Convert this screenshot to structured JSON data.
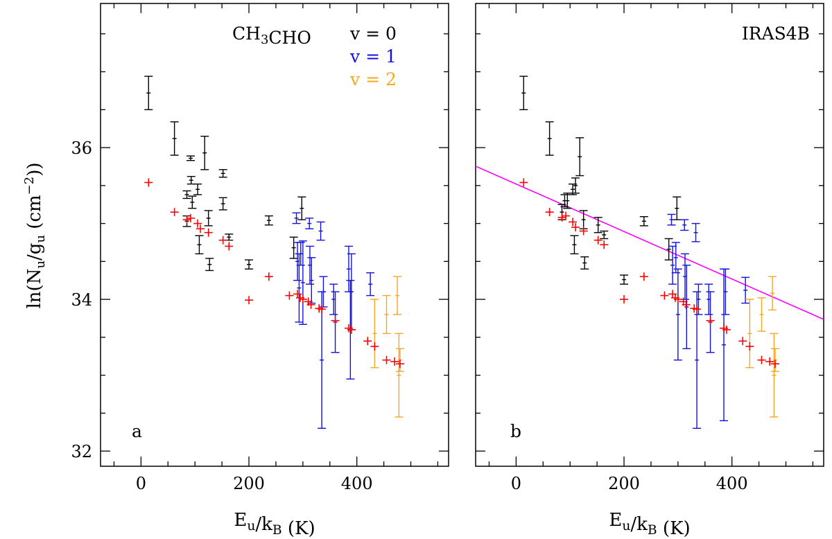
{
  "figure": {
    "ylabel": "ln(N_u/g_u (cm^-2))",
    "xlabel": "E_u/k_B (K)",
    "colors": {
      "v0": "#000000",
      "v1": "#1010e0",
      "v2": "#f5a623",
      "model": "#ff0000",
      "fit": "#ff00ff",
      "axis": "#000000"
    }
  },
  "chart_data": [
    {
      "type": "scatter",
      "panel_label": "a",
      "title": "CH3CHO",
      "xlabel": "E_u/k_B (K)",
      "ylabel": "ln(N_u/g_u (cm^-2))",
      "xlim": [
        -75,
        570
      ],
      "ylim": [
        31.8,
        37.9
      ],
      "xticks": [
        0,
        200,
        400
      ],
      "yticks": [
        32,
        34,
        36
      ],
      "legend": [
        "v = 0",
        "v = 1",
        "v = 2"
      ],
      "legend_position": "top-right",
      "series": [
        {
          "name": "v = 0",
          "color": "#000000",
          "points": [
            {
              "x": 14,
              "y": 36.72,
              "err": 0.22
            },
            {
              "x": 62,
              "y": 36.12,
              "err": 0.22
            },
            {
              "x": 85,
              "y": 35.38,
              "err": 0.05
            },
            {
              "x": 85,
              "y": 35.03,
              "err": 0.07
            },
            {
              "x": 92,
              "y": 35.86,
              "err": 0.03
            },
            {
              "x": 93,
              "y": 35.57,
              "err": 0.05
            },
            {
              "x": 95,
              "y": 35.28,
              "err": 0.08
            },
            {
              "x": 105,
              "y": 35.45,
              "err": 0.07
            },
            {
              "x": 108,
              "y": 34.72,
              "err": 0.12
            },
            {
              "x": 118,
              "y": 35.93,
              "err": 0.22
            },
            {
              "x": 125,
              "y": 35.07,
              "err": 0.1
            },
            {
              "x": 127,
              "y": 34.46,
              "err": 0.08
            },
            {
              "x": 152,
              "y": 35.66,
              "err": 0.05
            },
            {
              "x": 152,
              "y": 35.26,
              "err": 0.08
            },
            {
              "x": 163,
              "y": 34.82,
              "err": 0.04
            },
            {
              "x": 200,
              "y": 34.46,
              "err": 0.06
            },
            {
              "x": 237,
              "y": 35.04,
              "err": 0.06
            },
            {
              "x": 283,
              "y": 34.68,
              "err": 0.14
            },
            {
              "x": 298,
              "y": 35.2,
              "err": 0.15
            }
          ]
        },
        {
          "name": "v = 1",
          "color": "#1010e0",
          "points": [
            {
              "x": 288,
              "y": 35.07,
              "err": 0.07
            },
            {
              "x": 290,
              "y": 34.5,
              "err": 0.25
            },
            {
              "x": 293,
              "y": 34.15,
              "err": 0.45
            },
            {
              "x": 296,
              "y": 34.6,
              "err": 0.15
            },
            {
              "x": 300,
              "y": 34.22,
              "err": 0.55
            },
            {
              "x": 312,
              "y": 35.0,
              "err": 0.07
            },
            {
              "x": 313,
              "y": 34.45,
              "err": 0.25
            },
            {
              "x": 316,
              "y": 34.25,
              "err": 0.3
            },
            {
              "x": 333,
              "y": 34.9,
              "err": 0.12
            },
            {
              "x": 335,
              "y": 33.2,
              "err": 0.9
            },
            {
              "x": 338,
              "y": 34.1,
              "err": 0.2
            },
            {
              "x": 357,
              "y": 34.0,
              "err": 0.2
            },
            {
              "x": 360,
              "y": 33.7,
              "err": 0.4
            },
            {
              "x": 385,
              "y": 34.4,
              "err": 0.3
            },
            {
              "x": 388,
              "y": 33.6,
              "err": 0.65
            },
            {
              "x": 390,
              "y": 34.1,
              "err": 0.5
            },
            {
              "x": 425,
              "y": 34.2,
              "err": 0.15
            }
          ]
        },
        {
          "name": "v = 2",
          "color": "#f5a623",
          "points": [
            {
              "x": 433,
              "y": 33.55,
              "err": 0.45
            },
            {
              "x": 455,
              "y": 33.8,
              "err": 0.25
            },
            {
              "x": 475,
              "y": 34.05,
              "err": 0.25
            },
            {
              "x": 478,
              "y": 33.0,
              "err": 0.55
            },
            {
              "x": 480,
              "y": 33.2,
              "err": 0.15
            }
          ]
        },
        {
          "name": "",
          "color": "#ff0000",
          "points": [
            {
              "x": 14,
              "y": 35.54
            },
            {
              "x": 62,
              "y": 35.15
            },
            {
              "x": 85,
              "y": 35.05
            },
            {
              "x": 92,
              "y": 35.07
            },
            {
              "x": 105,
              "y": 35.0
            },
            {
              "x": 110,
              "y": 34.93
            },
            {
              "x": 125,
              "y": 34.88
            },
            {
              "x": 152,
              "y": 34.78
            },
            {
              "x": 163,
              "y": 34.7
            },
            {
              "x": 200,
              "y": 33.99
            },
            {
              "x": 237,
              "y": 34.3
            },
            {
              "x": 275,
              "y": 34.05
            },
            {
              "x": 290,
              "y": 34.07
            },
            {
              "x": 295,
              "y": 34.02
            },
            {
              "x": 300,
              "y": 34.0
            },
            {
              "x": 310,
              "y": 33.97
            },
            {
              "x": 315,
              "y": 33.93
            },
            {
              "x": 330,
              "y": 33.88
            },
            {
              "x": 335,
              "y": 33.87
            },
            {
              "x": 360,
              "y": 33.72
            },
            {
              "x": 385,
              "y": 33.62
            },
            {
              "x": 390,
              "y": 33.6
            },
            {
              "x": 420,
              "y": 33.45
            },
            {
              "x": 433,
              "y": 33.38
            },
            {
              "x": 455,
              "y": 33.2
            },
            {
              "x": 470,
              "y": 33.18
            },
            {
              "x": 480,
              "y": 33.15
            }
          ]
        }
      ]
    },
    {
      "type": "scatter",
      "panel_label": "b",
      "title": "IRAS4B",
      "xlabel": "E_u/k_B (K)",
      "xlim": [
        -75,
        570
      ],
      "ylim": [
        31.8,
        37.9
      ],
      "xticks": [
        0,
        200,
        400
      ],
      "yticks": [
        32,
        34,
        36
      ],
      "fit_line": {
        "color": "#ff00ff",
        "slope": -0.00313,
        "intercept": 35.52
      },
      "series": [
        {
          "name": "v = 0",
          "color": "#000000",
          "points": [
            {
              "x": 14,
              "y": 36.72,
              "err": 0.22
            },
            {
              "x": 62,
              "y": 36.12,
              "err": 0.22
            },
            {
              "x": 85,
              "y": 35.15,
              "err": 0.1
            },
            {
              "x": 90,
              "y": 35.3,
              "err": 0.08
            },
            {
              "x": 95,
              "y": 35.3,
              "err": 0.1
            },
            {
              "x": 105,
              "y": 35.45,
              "err": 0.07
            },
            {
              "x": 108,
              "y": 34.72,
              "err": 0.12
            },
            {
              "x": 110,
              "y": 35.5,
              "err": 0.1
            },
            {
              "x": 118,
              "y": 35.88,
              "err": 0.25
            },
            {
              "x": 125,
              "y": 35.05,
              "err": 0.12
            },
            {
              "x": 127,
              "y": 34.48,
              "err": 0.08
            },
            {
              "x": 152,
              "y": 34.98,
              "err": 0.1
            },
            {
              "x": 163,
              "y": 34.85,
              "err": 0.05
            },
            {
              "x": 200,
              "y": 34.26,
              "err": 0.06
            },
            {
              "x": 237,
              "y": 35.03,
              "err": 0.06
            },
            {
              "x": 283,
              "y": 34.66,
              "err": 0.14
            },
            {
              "x": 298,
              "y": 35.2,
              "err": 0.15
            }
          ]
        },
        {
          "name": "v = 1",
          "color": "#1010e0",
          "points": [
            {
              "x": 288,
              "y": 35.05,
              "err": 0.07
            },
            {
              "x": 290,
              "y": 34.45,
              "err": 0.25
            },
            {
              "x": 296,
              "y": 34.55,
              "err": 0.2
            },
            {
              "x": 300,
              "y": 33.8,
              "err": 0.6
            },
            {
              "x": 312,
              "y": 34.98,
              "err": 0.07
            },
            {
              "x": 313,
              "y": 34.3,
              "err": 0.3
            },
            {
              "x": 316,
              "y": 33.9,
              "err": 0.55
            },
            {
              "x": 333,
              "y": 34.88,
              "err": 0.12
            },
            {
              "x": 335,
              "y": 33.2,
              "err": 0.9
            },
            {
              "x": 338,
              "y": 34.0,
              "err": 0.2
            },
            {
              "x": 357,
              "y": 34.0,
              "err": 0.2
            },
            {
              "x": 360,
              "y": 33.7,
              "err": 0.4
            },
            {
              "x": 385,
              "y": 33.4,
              "err": 1.0
            },
            {
              "x": 388,
              "y": 34.1,
              "err": 0.3
            },
            {
              "x": 425,
              "y": 34.12,
              "err": 0.17
            }
          ]
        },
        {
          "name": "v = 2",
          "color": "#f5a623",
          "points": [
            {
              "x": 433,
              "y": 33.55,
              "err": 0.45
            },
            {
              "x": 455,
              "y": 33.8,
              "err": 0.22
            },
            {
              "x": 475,
              "y": 34.08,
              "err": 0.22
            },
            {
              "x": 478,
              "y": 33.0,
              "err": 0.55
            },
            {
              "x": 480,
              "y": 33.2,
              "err": 0.15
            }
          ]
        },
        {
          "name": "",
          "color": "#ff0000",
          "points": [
            {
              "x": 14,
              "y": 35.54
            },
            {
              "x": 62,
              "y": 35.15
            },
            {
              "x": 85,
              "y": 35.08
            },
            {
              "x": 92,
              "y": 35.1
            },
            {
              "x": 105,
              "y": 35.02
            },
            {
              "x": 110,
              "y": 34.95
            },
            {
              "x": 125,
              "y": 34.9
            },
            {
              "x": 152,
              "y": 34.78
            },
            {
              "x": 163,
              "y": 34.72
            },
            {
              "x": 200,
              "y": 34.0
            },
            {
              "x": 237,
              "y": 34.3
            },
            {
              "x": 275,
              "y": 34.05
            },
            {
              "x": 290,
              "y": 34.07
            },
            {
              "x": 295,
              "y": 34.02
            },
            {
              "x": 300,
              "y": 34.0
            },
            {
              "x": 310,
              "y": 33.97
            },
            {
              "x": 315,
              "y": 33.93
            },
            {
              "x": 330,
              "y": 33.88
            },
            {
              "x": 335,
              "y": 33.87
            },
            {
              "x": 360,
              "y": 33.72
            },
            {
              "x": 385,
              "y": 33.62
            },
            {
              "x": 390,
              "y": 33.6
            },
            {
              "x": 420,
              "y": 33.45
            },
            {
              "x": 433,
              "y": 33.38
            },
            {
              "x": 455,
              "y": 33.2
            },
            {
              "x": 470,
              "y": 33.18
            },
            {
              "x": 480,
              "y": 33.15
            }
          ]
        }
      ]
    }
  ]
}
